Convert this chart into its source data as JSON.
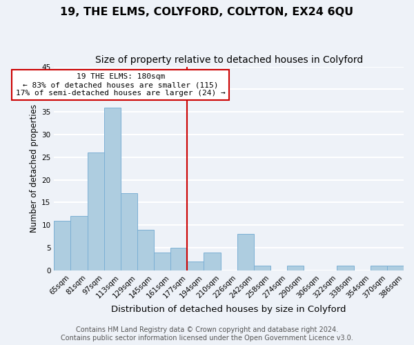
{
  "title": "19, THE ELMS, COLYFORD, COLYTON, EX24 6QU",
  "subtitle": "Size of property relative to detached houses in Colyford",
  "xlabel": "Distribution of detached houses by size in Colyford",
  "ylabel": "Number of detached properties",
  "bin_labels": [
    "65sqm",
    "81sqm",
    "97sqm",
    "113sqm",
    "129sqm",
    "145sqm",
    "161sqm",
    "177sqm",
    "194sqm",
    "210sqm",
    "226sqm",
    "242sqm",
    "258sqm",
    "274sqm",
    "290sqm",
    "306sqm",
    "322sqm",
    "338sqm",
    "354sqm",
    "370sqm",
    "386sqm"
  ],
  "bar_values": [
    11,
    12,
    26,
    36,
    17,
    9,
    4,
    5,
    2,
    4,
    0,
    8,
    1,
    0,
    1,
    0,
    0,
    1,
    0,
    1,
    1
  ],
  "bar_color": "#aecde0",
  "bar_edge_color": "#7bafd4",
  "prop_line_index": 7,
  "property_sqm": 180,
  "annotation_title": "19 THE ELMS: 180sqm",
  "annotation_line1": "← 83% of detached houses are smaller (115)",
  "annotation_line2": "17% of semi-detached houses are larger (24) →",
  "annotation_box_color": "#ffffff",
  "annotation_box_edge": "#cc0000",
  "line_color": "#cc0000",
  "ylim": [
    0,
    45
  ],
  "yticks": [
    0,
    5,
    10,
    15,
    20,
    25,
    30,
    35,
    40,
    45
  ],
  "footer_line1": "Contains HM Land Registry data © Crown copyright and database right 2024.",
  "footer_line2": "Contains public sector information licensed under the Open Government Licence v3.0.",
  "background_color": "#eef2f8",
  "grid_color": "#ffffff",
  "title_fontsize": 11.5,
  "subtitle_fontsize": 10,
  "xlabel_fontsize": 9.5,
  "ylabel_fontsize": 8.5,
  "tick_fontsize": 7.5,
  "footer_fontsize": 7,
  "annotation_fontsize": 8
}
